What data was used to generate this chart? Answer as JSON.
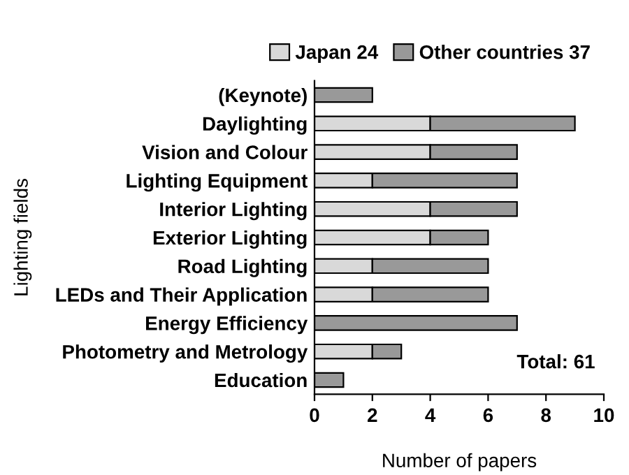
{
  "chart_data": {
    "type": "bar",
    "orientation": "horizontal",
    "stacked": true,
    "categories": [
      "(Keynote)",
      "Daylighting",
      "Vision and Colour",
      "Lighting Equipment",
      "Interior Lighting",
      "Exterior Lighting",
      "Road Lighting",
      "LEDs and Their Application",
      "Energy Efficiency",
      "Photometry and Metrology",
      "Education"
    ],
    "series": [
      {
        "name": "Japan 24",
        "color": "#d9d9d9",
        "values": [
          0,
          4,
          4,
          2,
          4,
          4,
          2,
          2,
          0,
          2,
          0
        ]
      },
      {
        "name": "Other countries 37",
        "color": "#999999",
        "values": [
          2,
          5,
          3,
          5,
          3,
          2,
          4,
          4,
          7,
          1,
          1
        ]
      }
    ],
    "xlim": [
      0,
      10
    ],
    "xticks": [
      0,
      2,
      4,
      6,
      8,
      10
    ],
    "xlabel": "Number of papers",
    "ylabel": "Lighting fields",
    "annotations": [
      "Total: 61"
    ],
    "legend": "top",
    "grid": false
  }
}
